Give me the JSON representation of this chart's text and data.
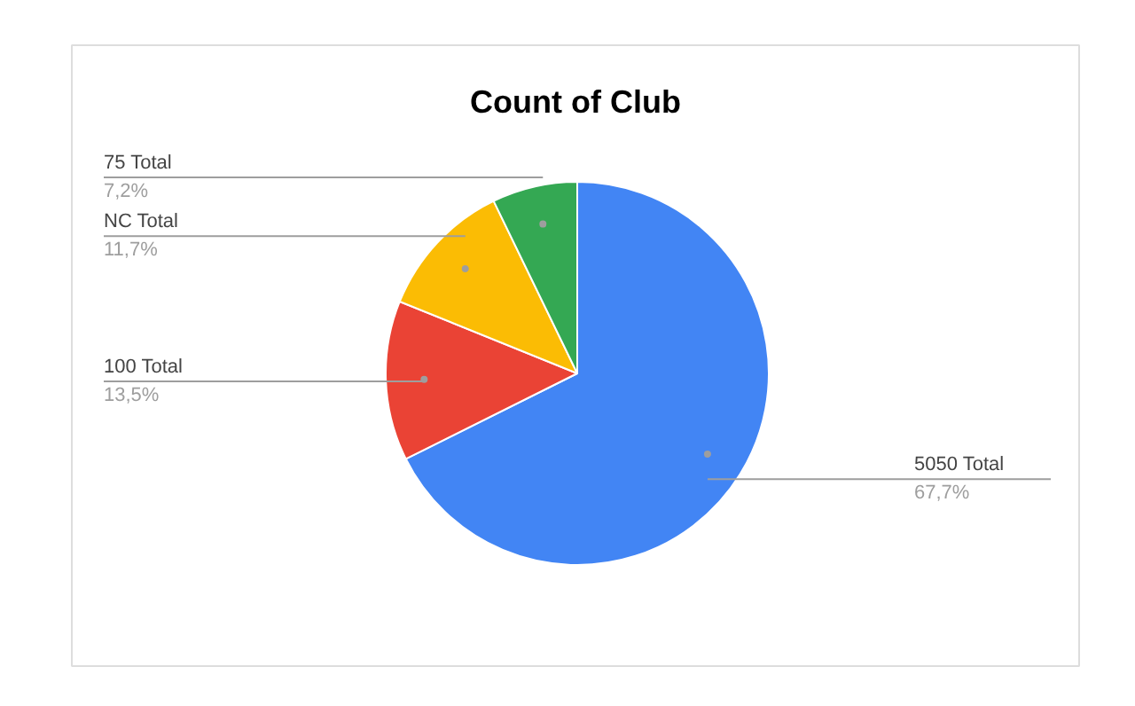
{
  "chart_data": {
    "type": "pie",
    "title": "Count of Club",
    "categories": [
      "5050 Total",
      "100 Total",
      "NC Total",
      "75 Total"
    ],
    "values": [
      67.7,
      13.5,
      11.7,
      7.2
    ],
    "colors": [
      "#4285f4",
      "#ea4335",
      "#fbbc04",
      "#34a853"
    ],
    "value_labels": [
      "67,7%",
      "13,5%",
      "11,7%",
      "7,2%"
    ]
  }
}
